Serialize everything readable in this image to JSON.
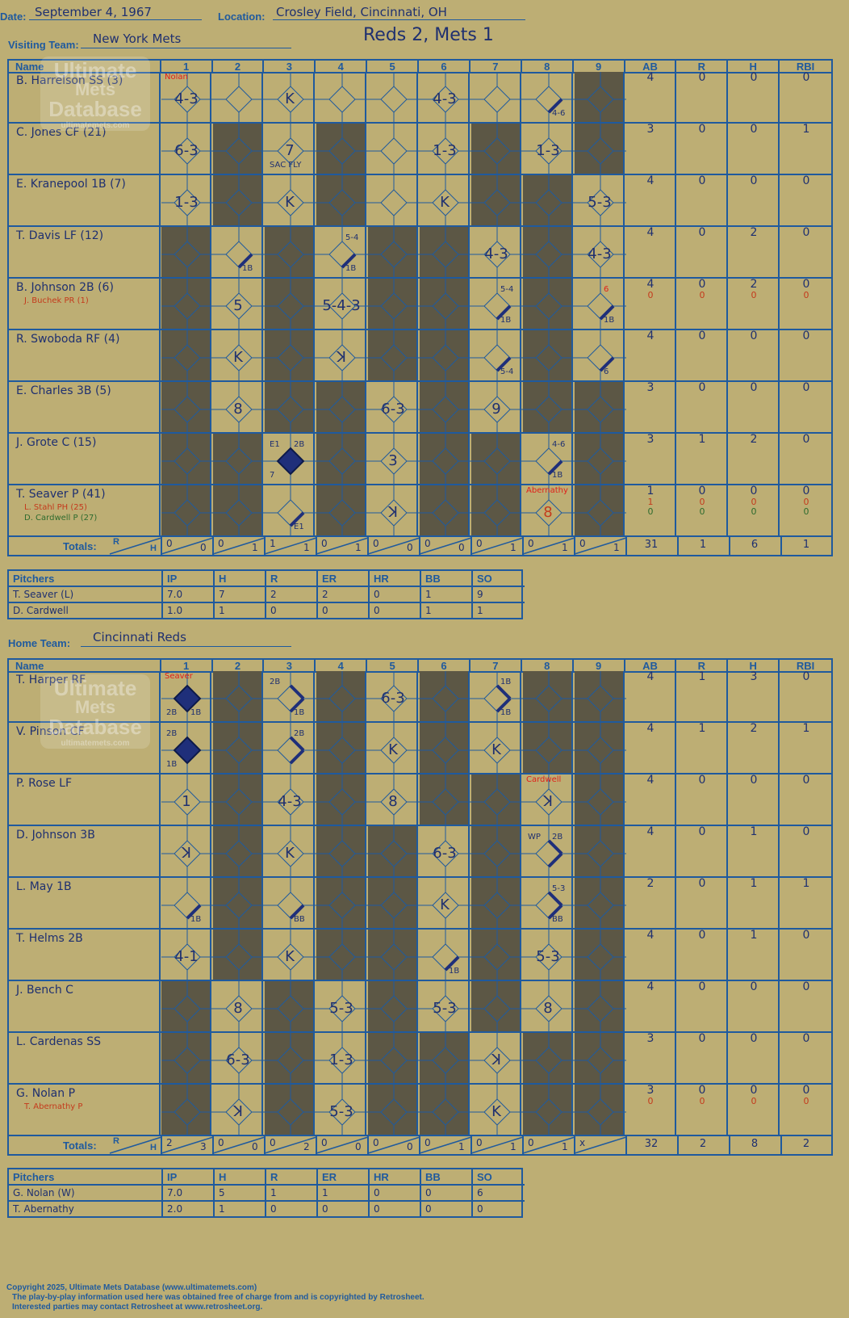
{
  "header": {
    "date_label": "Date:",
    "date": "September 4, 1967",
    "location_label": "Location:",
    "location": "Crosley Field, Cincinnati, OH",
    "score_title": "Reds 2, Mets 1",
    "visiting_label": "Visiting Team:",
    "visiting_team": "New York Mets",
    "home_label": "Home Team:",
    "home_team": "Cincinnati Reds"
  },
  "watermark": {
    "line1": "Ultimate",
    "line2": "Mets",
    "line3": "Database",
    "url": "ultimatemets.com"
  },
  "columns": {
    "name": "Name",
    "innings": [
      "1",
      "2",
      "3",
      "4",
      "5",
      "6",
      "7",
      "8",
      "9"
    ],
    "stats": [
      "AB",
      "R",
      "H",
      "RBI"
    ]
  },
  "totals_label": "Totals:",
  "totals_r": "R",
  "totals_h": "H",
  "visiting": {
    "batters": [
      {
        "name": "B. Harrelson SS (3)",
        "subs": [],
        "ab": [
          "4"
        ],
        "r": [
          "0"
        ],
        "h": [
          "0"
        ],
        "rbi": [
          "0"
        ],
        "cells": {
          "1": {
            "code": "4-3",
            "note": "Nolan"
          },
          "3": {
            "code": "K"
          },
          "6": {
            "code": "4-3"
          },
          "8": {
            "small_br": "4-6",
            "path": [
              1
            ]
          }
        }
      },
      {
        "name": "C. Jones CF (21)",
        "subs": [],
        "ab": [
          "3"
        ],
        "r": [
          "0"
        ],
        "h": [
          "0"
        ],
        "rbi": [
          "1"
        ],
        "cells": {
          "1": {
            "code": "6-3"
          },
          "3": {
            "code": "7",
            "small_bl": "SAC FLY"
          },
          "6": {
            "code": "1-3"
          },
          "8": {
            "code": "1-3"
          }
        }
      },
      {
        "name": "E. Kranepool 1B (7)",
        "subs": [],
        "ab": [
          "4"
        ],
        "r": [
          "0"
        ],
        "h": [
          "0"
        ],
        "rbi": [
          "0"
        ],
        "cells": {
          "1": {
            "code": "1-3"
          },
          "3": {
            "code": "K"
          },
          "6": {
            "code": "K"
          },
          "9": {
            "code": "5-3"
          }
        }
      },
      {
        "name": "T. Davis LF (12)",
        "subs": [],
        "ab": [
          "4"
        ],
        "r": [
          "0"
        ],
        "h": [
          "2"
        ],
        "rbi": [
          "0"
        ],
        "cells": {
          "2": {
            "small_br": "1B",
            "path": [
              1
            ]
          },
          "4": {
            "small_tr": "5-4",
            "small_br": "1B",
            "path": [
              1
            ]
          },
          "7": {
            "code": "4-3"
          },
          "9": {
            "code": "4-3"
          }
        }
      },
      {
        "name": "B. Johnson 2B (6)",
        "subs": [
          {
            "name": "J. Buchek PR (1)",
            "color": "red"
          }
        ],
        "ab": [
          "4",
          "0"
        ],
        "r": [
          "0",
          "0"
        ],
        "h": [
          "2",
          "0"
        ],
        "rbi": [
          "0",
          "0"
        ],
        "cells": {
          "2": {
            "code": "5"
          },
          "4": {
            "code": "5-4-3"
          },
          "7": {
            "small_tr": "5-4",
            "small_br": "1B",
            "path": [
              1
            ]
          },
          "9": {
            "note_tr": "6",
            "small_br": "1B",
            "path": [
              1
            ]
          }
        }
      },
      {
        "name": "R. Swoboda RF (4)",
        "subs": [],
        "ab": [
          "4"
        ],
        "r": [
          "0"
        ],
        "h": [
          "0"
        ],
        "rbi": [
          "0"
        ],
        "cells": {
          "2": {
            "code": "K"
          },
          "4": {
            "code": "ꓘ"
          },
          "7": {
            "small_br": "5-4",
            "path": [
              1
            ]
          },
          "9": {
            "small_br": "6",
            "path": [
              1
            ]
          }
        }
      },
      {
        "name": "E. Charles 3B (5)",
        "subs": [],
        "ab": [
          "3"
        ],
        "r": [
          "0"
        ],
        "h": [
          "0"
        ],
        "rbi": [
          "0"
        ],
        "cells": {
          "2": {
            "code": "8"
          },
          "5": {
            "code": "6-3"
          },
          "7": {
            "code": "9"
          }
        }
      },
      {
        "name": "J. Grote C (15)",
        "subs": [],
        "ab": [
          "3"
        ],
        "r": [
          "1"
        ],
        "h": [
          "2"
        ],
        "rbi": [
          "0"
        ],
        "cells": {
          "3": {
            "small_tl": "E1",
            "small_tr": "2B",
            "small_bl": "7",
            "run": true
          },
          "5": {
            "code": "3"
          },
          "8": {
            "small_tr": "4-6",
            "small_br": "1B",
            "path": [
              1
            ]
          }
        }
      },
      {
        "name": "T. Seaver P (41)",
        "subs": [
          {
            "name": "L. Stahl PH (25)",
            "color": "red"
          },
          {
            "name": "D. Cardwell P (27)",
            "color": "green"
          }
        ],
        "ab": [
          "1",
          "1",
          "0"
        ],
        "r": [
          "0",
          "0",
          "0"
        ],
        "h": [
          "0",
          "0",
          "0"
        ],
        "rbi": [
          "0",
          "0",
          "0"
        ],
        "cells": {
          "3": {
            "small_br": "E1",
            "path": [
              1
            ]
          },
          "5": {
            "code": "ꓘ"
          },
          "8": {
            "code": "8",
            "note": "Abernathy",
            "red": true
          }
        }
      }
    ],
    "shaded": [
      [
        0,
        0,
        0,
        0,
        0,
        0,
        0,
        0,
        1
      ],
      [
        0,
        1,
        0,
        1,
        0,
        0,
        1,
        0,
        1
      ],
      [
        0,
        1,
        0,
        1,
        0,
        0,
        1,
        1,
        0
      ],
      [
        1,
        0,
        1,
        0,
        1,
        1,
        0,
        1,
        0
      ],
      [
        1,
        0,
        1,
        0,
        1,
        1,
        0,
        1,
        0
      ],
      [
        1,
        0,
        1,
        0,
        1,
        1,
        0,
        1,
        0
      ],
      [
        1,
        0,
        1,
        1,
        0,
        1,
        0,
        1,
        1
      ],
      [
        1,
        1,
        0,
        1,
        0,
        1,
        1,
        0,
        1
      ],
      [
        1,
        1,
        0,
        1,
        0,
        1,
        1,
        0,
        1
      ]
    ],
    "line_score": [
      [
        "0",
        "0"
      ],
      [
        "0",
        "1"
      ],
      [
        "1",
        "1"
      ],
      [
        "0",
        "1"
      ],
      [
        "0",
        "0"
      ],
      [
        "0",
        "0"
      ],
      [
        "0",
        "1"
      ],
      [
        "0",
        "1"
      ],
      [
        "0",
        "1"
      ]
    ],
    "totals": {
      "ab": "31",
      "r": "1",
      "h": "6",
      "rbi": "1"
    },
    "pitchers_label": "Pitchers",
    "pitcher_cols": [
      "IP",
      "H",
      "R",
      "ER",
      "HR",
      "BB",
      "SO"
    ],
    "pitchers": [
      {
        "name": "T. Seaver (L)",
        "stats": [
          "7.0",
          "7",
          "2",
          "2",
          "0",
          "1",
          "9"
        ]
      },
      {
        "name": "D. Cardwell",
        "stats": [
          "1.0",
          "1",
          "0",
          "0",
          "0",
          "1",
          "1"
        ]
      }
    ]
  },
  "home": {
    "batters": [
      {
        "name": "T. Harper RF",
        "subs": [],
        "ab": [
          "4"
        ],
        "r": [
          "1"
        ],
        "h": [
          "3"
        ],
        "rbi": [
          "0"
        ],
        "cells": {
          "1": {
            "note": "Seaver",
            "small_bl": "2B",
            "small_br": "1B",
            "run": true
          },
          "3": {
            "small_tl": "2B",
            "small_br": "1B",
            "path": [
              0,
              1
            ]
          },
          "5": {
            "code": "6-3"
          },
          "7": {
            "small_tr": "1B",
            "small_br": "1B",
            "path": [
              0,
              1
            ]
          }
        }
      },
      {
        "name": "V. Pinson CF",
        "subs": [],
        "ab": [
          "4"
        ],
        "r": [
          "1"
        ],
        "h": [
          "2"
        ],
        "rbi": [
          "1"
        ],
        "cells": {
          "1": {
            "small_tl": "2B",
            "small_bl": "1B",
            "run": true
          },
          "3": {
            "small_tr": "2B",
            "path": [
              0,
              1
            ]
          },
          "5": {
            "code": "K"
          },
          "7": {
            "code": "K"
          }
        }
      },
      {
        "name": "P. Rose LF",
        "subs": [],
        "ab": [
          "4"
        ],
        "r": [
          "0"
        ],
        "h": [
          "0"
        ],
        "rbi": [
          "0"
        ],
        "cells": {
          "1": {
            "code": "1"
          },
          "3": {
            "code": "4-3"
          },
          "5": {
            "code": "8"
          },
          "8": {
            "code": "ꓘ",
            "note": "Cardwell"
          }
        }
      },
      {
        "name": "D. Johnson 3B",
        "subs": [],
        "ab": [
          "4"
        ],
        "r": [
          "0"
        ],
        "h": [
          "1"
        ],
        "rbi": [
          "0"
        ],
        "cells": {
          "1": {
            "code": "ꓘ"
          },
          "3": {
            "code": "K"
          },
          "6": {
            "code": "6-3"
          },
          "8": {
            "small_tl": "WP",
            "small_tr": "2B",
            "path": [
              0,
              1
            ]
          }
        }
      },
      {
        "name": "L. May 1B",
        "subs": [],
        "ab": [
          "2"
        ],
        "r": [
          "0"
        ],
        "h": [
          "1"
        ],
        "rbi": [
          "1"
        ],
        "cells": {
          "1": {
            "small_br": "1B",
            "path": [
              1
            ]
          },
          "3": {
            "small_br": "BB",
            "path": [
              1
            ]
          },
          "6": {
            "code": "K"
          },
          "8": {
            "small_tr": "5-3",
            "small_br": "BB",
            "path": [
              0,
              1
            ]
          }
        }
      },
      {
        "name": "T. Helms 2B",
        "subs": [],
        "ab": [
          "4"
        ],
        "r": [
          "0"
        ],
        "h": [
          "1"
        ],
        "rbi": [
          "0"
        ],
        "cells": {
          "1": {
            "code": "4-1"
          },
          "3": {
            "code": "K"
          },
          "6": {
            "small_br": "1B",
            "path": [
              1
            ]
          },
          "8": {
            "code": "5-3"
          }
        }
      },
      {
        "name": "J. Bench C",
        "subs": [],
        "ab": [
          "4"
        ],
        "r": [
          "0"
        ],
        "h": [
          "0"
        ],
        "rbi": [
          "0"
        ],
        "cells": {
          "2": {
            "code": "8"
          },
          "4": {
            "code": "5-3"
          },
          "6": {
            "code": "5-3"
          },
          "8": {
            "code": "8"
          }
        }
      },
      {
        "name": "L. Cardenas SS",
        "subs": [],
        "ab": [
          "3"
        ],
        "r": [
          "0"
        ],
        "h": [
          "0"
        ],
        "rbi": [
          "0"
        ],
        "cells": {
          "2": {
            "code": "6-3"
          },
          "4": {
            "code": "1-3"
          },
          "7": {
            "code": "ꓘ"
          }
        }
      },
      {
        "name": "G. Nolan P",
        "subs": [
          {
            "name": "T. Abernathy P",
            "color": "red"
          }
        ],
        "ab": [
          "3",
          "0"
        ],
        "r": [
          "0",
          "0"
        ],
        "h": [
          "0",
          "0"
        ],
        "rbi": [
          "0",
          "0"
        ],
        "cells": {
          "2": {
            "code": "ꓘ"
          },
          "4": {
            "code": "5-3"
          },
          "7": {
            "code": "K"
          }
        }
      }
    ],
    "shaded": [
      [
        0,
        1,
        0,
        1,
        0,
        1,
        0,
        1,
        1
      ],
      [
        0,
        1,
        0,
        1,
        0,
        1,
        0,
        1,
        1
      ],
      [
        0,
        1,
        0,
        1,
        0,
        1,
        1,
        0,
        1
      ],
      [
        0,
        1,
        0,
        1,
        1,
        0,
        1,
        0,
        1
      ],
      [
        0,
        1,
        0,
        1,
        1,
        0,
        1,
        0,
        1
      ],
      [
        0,
        1,
        0,
        1,
        1,
        0,
        1,
        0,
        1
      ],
      [
        1,
        0,
        1,
        0,
        1,
        0,
        1,
        0,
        1
      ],
      [
        1,
        0,
        1,
        0,
        1,
        1,
        0,
        1,
        1
      ],
      [
        1,
        0,
        1,
        0,
        1,
        1,
        0,
        1,
        1
      ]
    ],
    "line_score": [
      [
        "2",
        "3"
      ],
      [
        "0",
        "0"
      ],
      [
        "0",
        "2"
      ],
      [
        "0",
        "0"
      ],
      [
        "0",
        "0"
      ],
      [
        "0",
        "1"
      ],
      [
        "0",
        "1"
      ],
      [
        "0",
        "1"
      ],
      [
        "x",
        ""
      ]
    ],
    "totals": {
      "ab": "32",
      "r": "2",
      "h": "8",
      "rbi": "2"
    },
    "pitchers_label": "Pitchers",
    "pitcher_cols": [
      "IP",
      "H",
      "R",
      "ER",
      "HR",
      "BB",
      "SO"
    ],
    "pitchers": [
      {
        "name": "G. Nolan (W)",
        "stats": [
          "7.0",
          "5",
          "1",
          "1",
          "0",
          "0",
          "6"
        ]
      },
      {
        "name": "T. Abernathy",
        "stats": [
          "2.0",
          "1",
          "0",
          "0",
          "0",
          "0",
          "0"
        ]
      }
    ]
  },
  "footer": {
    "line1": "Copyright 2025, Ultimate Mets Database (www.ultimatemets.com)",
    "line2": "The play-by-play information used here was obtained free of charge from and is copyrighted by Retrosheet.",
    "line3": "Interested parties may contact Retrosheet at www.retrosheet.org."
  },
  "colors": {
    "background": "#bdae74",
    "grid": "#1f5a9e",
    "shade": "#5c5745",
    "ink": "#1f3070",
    "note": "#e0201a"
  }
}
